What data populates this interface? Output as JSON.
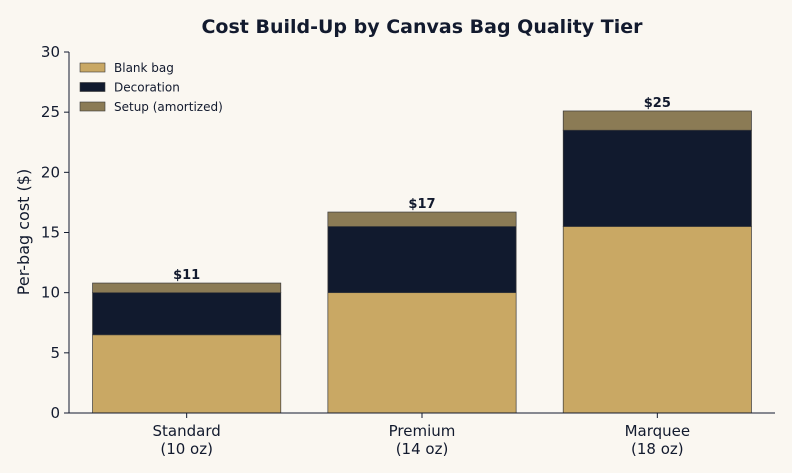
{
  "chart_data": {
    "type": "bar",
    "stacked": true,
    "title": "Cost Build-Up by Canvas Bag Quality Tier",
    "xlabel": "",
    "ylabel": "Per-bag cost ($)",
    "ylim": [
      0,
      30
    ],
    "yticks": [
      0,
      5,
      10,
      15,
      20,
      25,
      30
    ],
    "categories": [
      [
        "Standard",
        "(10 oz)"
      ],
      [
        "Premium",
        "(14 oz)"
      ],
      [
        "Marquee",
        "(18 oz)"
      ]
    ],
    "series": [
      {
        "name": "Blank bag",
        "color": "#c9a864",
        "values": [
          6.5,
          10.0,
          15.5
        ]
      },
      {
        "name": "Decoration",
        "color": "#111a2e",
        "values": [
          3.5,
          5.5,
          8.0
        ]
      },
      {
        "name": "Setup (amortized)",
        "color": "#8b7b55",
        "values": [
          0.8,
          1.2,
          1.6
        ]
      }
    ],
    "totals": [
      "$11",
      "$17",
      "$25"
    ],
    "legend_position": "top-left",
    "grid": false
  }
}
